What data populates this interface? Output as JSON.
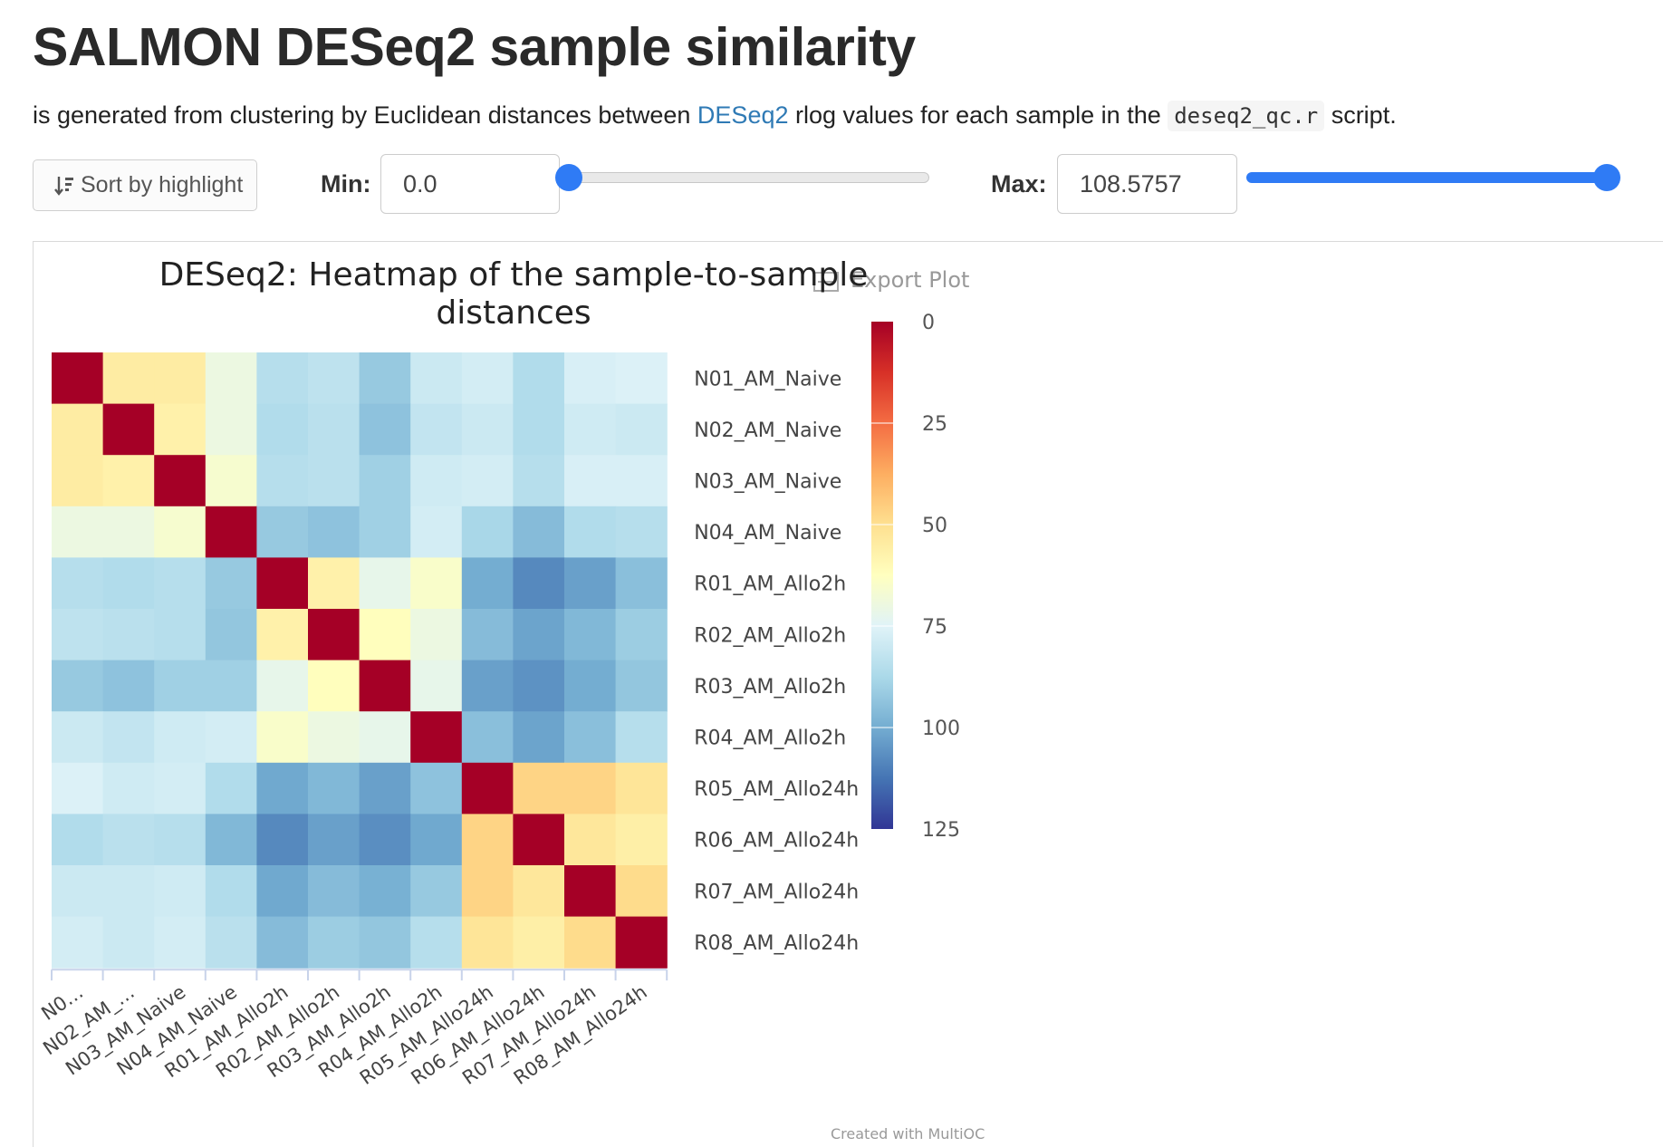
{
  "page": {
    "title": "SALMON DESeq2 sample similarity",
    "description": {
      "before": "is generated from clustering by Euclidean distances between ",
      "link": "DESeq2",
      "middle": " rlog values for each sample in the ",
      "code": "deseq2_qc.r",
      "after": " script."
    }
  },
  "controls": {
    "sort_label": "Sort by highlight",
    "min_label": "Min:",
    "min_value": "0.0",
    "min_slider_fraction": 0.0,
    "max_label": "Max:",
    "max_value": "108.5757",
    "max_slider_fraction": 1.0
  },
  "plot": {
    "export_label": "Export Plot",
    "credit": "Created with MultiQC"
  },
  "colors": {
    "slider_accent": "#2f7bf5",
    "link": "#2f7ab5"
  },
  "chart_data": {
    "type": "heatmap",
    "title": "DESeq2: Heatmap of the sample-to-sample distances",
    "title_lines": [
      "DESeq2: Heatmap of the sample-to-sample",
      "distances"
    ],
    "rows": [
      "N01_AM_Naive",
      "N02_AM_Naive",
      "N03_AM_Naive",
      "N04_AM_Naive",
      "R01_AM_Allo2h",
      "R02_AM_Allo2h",
      "R03_AM_Allo2h",
      "R04_AM_Allo2h",
      "R05_AM_Allo24h",
      "R06_AM_Allo24h",
      "R07_AM_Allo24h",
      "R08_AM_Allo24h"
    ],
    "x_tick_labels": [
      "N0…",
      "N02_AM_…",
      "N03_AM_Naive",
      "N04_AM_Naive",
      "R01_AM_Allo2h",
      "R02_AM_Allo2h",
      "R03_AM_Allo2h",
      "R04_AM_Allo2h",
      "R05_AM_Allo24h",
      "R06_AM_Allo24h",
      "R07_AM_Allo24h",
      "R08_AM_Allo24h"
    ],
    "values": [
      [
        0,
        55,
        55,
        70,
        85,
        83,
        92,
        80,
        78,
        86,
        77,
        76
      ],
      [
        55,
        0,
        57,
        70,
        86,
        84,
        94,
        82,
        80,
        86,
        79,
        80
      ],
      [
        55,
        57,
        0,
        66,
        85,
        84,
        90,
        79,
        78,
        85,
        77,
        77
      ],
      [
        70,
        70,
        66,
        0,
        92,
        94,
        90,
        78,
        88,
        96,
        86,
        85
      ],
      [
        85,
        86,
        85,
        92,
        0,
        57,
        72,
        65,
        100,
        108,
        103,
        95
      ],
      [
        83,
        84,
        85,
        93,
        57,
        0,
        62,
        70,
        96,
        102,
        97,
        91
      ],
      [
        92,
        94,
        90,
        90,
        72,
        62,
        0,
        72,
        103,
        106,
        100,
        93
      ],
      [
        80,
        82,
        79,
        78,
        65,
        70,
        72,
        0,
        95,
        102,
        95,
        85
      ],
      [
        76,
        79,
        78,
        86,
        101,
        97,
        103,
        94,
        0,
        47,
        47,
        52
      ],
      [
        86,
        84,
        85,
        97,
        108,
        103,
        107,
        101,
        47,
        0,
        53,
        56
      ],
      [
        80,
        80,
        79,
        86,
        101,
        96,
        99,
        92,
        47,
        53,
        0,
        49
      ],
      [
        78,
        80,
        78,
        84,
        96,
        91,
        93,
        85,
        52,
        56,
        49,
        0
      ]
    ],
    "colorbar": {
      "ticks": [
        0,
        25,
        50,
        75,
        100,
        125
      ],
      "range": [
        0,
        125
      ],
      "colors": [
        "#a50026",
        "#d73027",
        "#f46d43",
        "#fdae61",
        "#fee090",
        "#ffffbf",
        "#e0f3f8",
        "#abd9e9",
        "#74add1",
        "#4575b4",
        "#313695"
      ]
    },
    "legend_placement": "right"
  }
}
